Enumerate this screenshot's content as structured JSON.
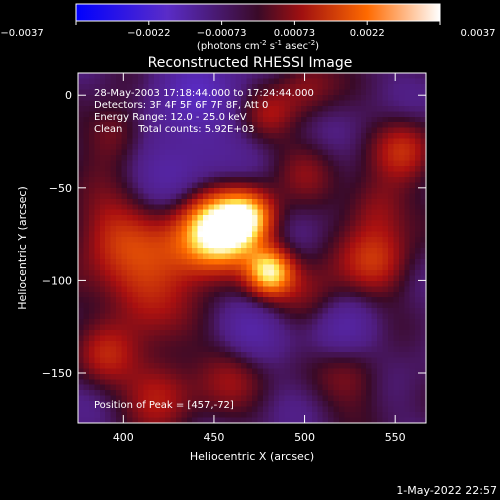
{
  "chart_data": {
    "type": "heatmap",
    "title": "Reconstructed RHESSI Image",
    "xlabel": "Heliocentric X (arcsec)",
    "ylabel": "Heliocentric Y (arcsec)",
    "xlim": [
      375,
      567
    ],
    "ylim": [
      -177,
      12
    ],
    "x_ticks": [
      400,
      450,
      500,
      550
    ],
    "y_ticks": [
      0,
      -50,
      -100,
      -150
    ],
    "colorbar": {
      "ticks": [
        "-0.0037",
        "-0.0022",
        "-0.00073",
        "0.00073",
        "0.0022",
        "0.0037"
      ],
      "label": "(photons cm",
      "label_sup1": "-2",
      "label_mid": " s",
      "label_sup2": "-1",
      "label_end": " asec",
      "label_sup3": "-2",
      "label_close": ")",
      "range": [
        -0.0037,
        0.0037
      ]
    },
    "annotations": [
      "28-May-2003 17:18:44.000 to 17:24:44.000",
      "Detectors: 3F 4F 5F 6F 7F 8F, Att 0",
      "Energy Range: 12.0 - 25.0 keV",
      "Clean     Total counts: 5.92E+03"
    ],
    "peak_label": "Position of Peak = [457,-72]",
    "sources": [
      {
        "x": 455,
        "y": -72,
        "value": 0.0037,
        "width": 14
      },
      {
        "x": 481,
        "y": -95,
        "value": 0.0034,
        "width": 9
      },
      {
        "x": 470,
        "y": -65,
        "value": 0.0022,
        "width": 10
      },
      {
        "x": 440,
        "y": -80,
        "value": 0.0018,
        "width": 18
      },
      {
        "x": 505,
        "y": -110,
        "value": 0.0012,
        "width": 14
      },
      {
        "x": 395,
        "y": -75,
        "value": 0.0016,
        "width": 18
      },
      {
        "x": 410,
        "y": -110,
        "value": 0.0014,
        "width": 16
      },
      {
        "x": 420,
        "y": -160,
        "value": 0.0015,
        "width": 14
      },
      {
        "x": 390,
        "y": -140,
        "value": 0.0011,
        "width": 12
      },
      {
        "x": 540,
        "y": -90,
        "value": 0.0016,
        "width": 14
      },
      {
        "x": 555,
        "y": -30,
        "value": 0.0014,
        "width": 12
      },
      {
        "x": 540,
        "y": -60,
        "value": 0.0012,
        "width": 12
      },
      {
        "x": 525,
        "y": -150,
        "value": 0.0013,
        "width": 14
      },
      {
        "x": 460,
        "y": -150,
        "value": 0.001,
        "width": 14
      },
      {
        "x": 395,
        "y": -20,
        "value": 0.0012,
        "width": 12
      },
      {
        "x": 480,
        "y": -10,
        "value": 0.0009,
        "width": 10
      },
      {
        "x": 500,
        "y": -40,
        "value": 0.0008,
        "width": 12
      },
      {
        "x": 500,
        "y": 5,
        "value": 0.001,
        "width": 12
      },
      {
        "x": 430,
        "y": -40,
        "value": -0.001,
        "width": 20
      },
      {
        "x": 520,
        "y": -130,
        "value": -0.0012,
        "width": 16
      },
      {
        "x": 470,
        "y": -125,
        "value": -0.0008,
        "width": 14
      },
      {
        "x": 440,
        "y": 5,
        "value": -0.0009,
        "width": 18
      }
    ]
  },
  "footer_timestamp": "1-May-2022 22:57"
}
